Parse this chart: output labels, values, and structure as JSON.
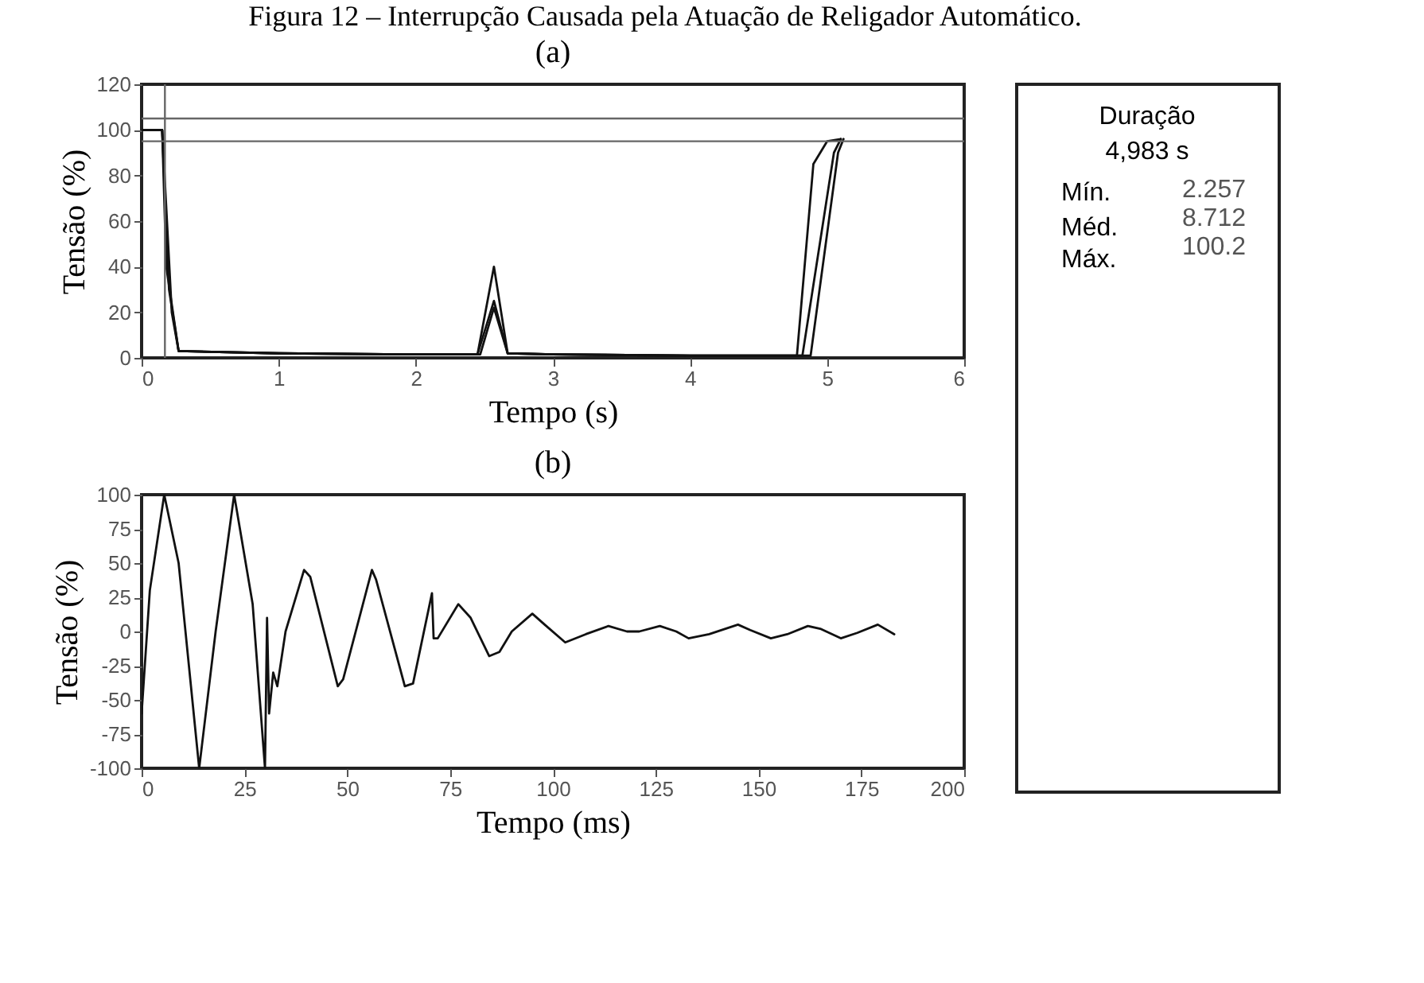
{
  "chart_data": [
    {
      "type": "line",
      "title": "Figura 12 – Interrupção Causada pela Atuação de Religador Automático.",
      "subtitle": "(a)",
      "xlabel": "Tempo (s)",
      "ylabel": "Tensão (%)",
      "xlim": [
        0,
        6
      ],
      "ylim": [
        0,
        120
      ],
      "xticks": [
        0,
        1,
        2,
        3,
        4,
        5,
        6
      ],
      "yticks": [
        0,
        20,
        40,
        60,
        80,
        100,
        120
      ],
      "grid": false,
      "series": [
        {
          "color": "#111111",
          "x": [
            0,
            0.15,
            0.18,
            0.27,
            1,
            2,
            2.45,
            2.57,
            2.67,
            3,
            4,
            4.78,
            4.9,
            5.0,
            5.1
          ],
          "values": [
            100,
            100,
            40,
            3,
            2,
            1.5,
            1.5,
            40,
            2,
            1.5,
            1,
            1,
            85,
            95,
            96
          ]
        },
        {
          "color": "#111111",
          "x": [
            0,
            0.15,
            0.2,
            0.27,
            1,
            2,
            2.45,
            2.57,
            2.67,
            3,
            4,
            4.82,
            5.05,
            5.1
          ],
          "values": [
            100,
            100,
            30,
            3,
            2,
            1.5,
            1.5,
            25,
            2,
            1.5,
            1,
            1,
            90,
            96
          ]
        },
        {
          "color": "#111111",
          "x": [
            0,
            0.15,
            0.22,
            0.27,
            1,
            2,
            2.47,
            2.57,
            2.67,
            3,
            4,
            4.88,
            5.08,
            5.12
          ],
          "values": [
            100,
            100,
            20,
            3,
            2,
            1.5,
            1.5,
            22,
            2,
            1.5,
            1,
            1,
            90,
            96
          ]
        }
      ],
      "ref_lines": [
        {
          "axis": "y",
          "value": 105,
          "color": "#666666"
        },
        {
          "axis": "y",
          "value": 95,
          "color": "#666666"
        },
        {
          "axis": "x",
          "value": 0.17,
          "color": "#666666"
        }
      ]
    },
    {
      "type": "line",
      "title": "(b)",
      "xlabel": "Tempo (ms)",
      "ylabel": "Tensão (%)",
      "xlim": [
        0,
        200
      ],
      "ylim": [
        -100,
        100
      ],
      "xticks": [
        0,
        25,
        50,
        75,
        100,
        125,
        150,
        175,
        200
      ],
      "yticks": [
        -100,
        -75,
        -50,
        -25,
        0,
        25,
        50,
        75,
        100
      ],
      "grid": false,
      "series": [
        {
          "color": "#111111",
          "x": [
            0,
            2,
            5.5,
            9,
            14,
            18,
            22.5,
            27,
            30,
            30.5,
            31,
            32,
            33,
            35,
            39.5,
            41,
            47.7,
            49,
            56,
            57,
            64,
            66,
            70.6,
            71,
            72,
            77,
            80,
            84.5,
            87,
            90,
            95,
            98,
            103,
            108,
            113.5,
            118,
            121,
            126,
            130,
            133,
            138,
            145,
            148,
            153,
            157,
            162,
            165,
            170,
            174,
            179,
            183
          ],
          "values": [
            -60,
            30,
            100,
            50,
            -100,
            0,
            100,
            20,
            -100,
            10,
            -60,
            -30,
            -40,
            0,
            45,
            40,
            -40,
            -35,
            45,
            38,
            -40,
            -38,
            28,
            -5,
            -5,
            20,
            10,
            -18,
            -15,
            0,
            13,
            5,
            -8,
            -2,
            4,
            0,
            0,
            4,
            0,
            -5,
            -2,
            5,
            1,
            -5,
            -2,
            4,
            2,
            -5,
            -1,
            5,
            -2
          ]
        }
      ]
    },
    {
      "type": "other",
      "title": "Duração",
      "subtitle": "4,983 s",
      "annotations": [
        "Mín.",
        "2.257",
        "Méd.",
        "8.712",
        "Máx.",
        "100.2"
      ]
    }
  ]
}
